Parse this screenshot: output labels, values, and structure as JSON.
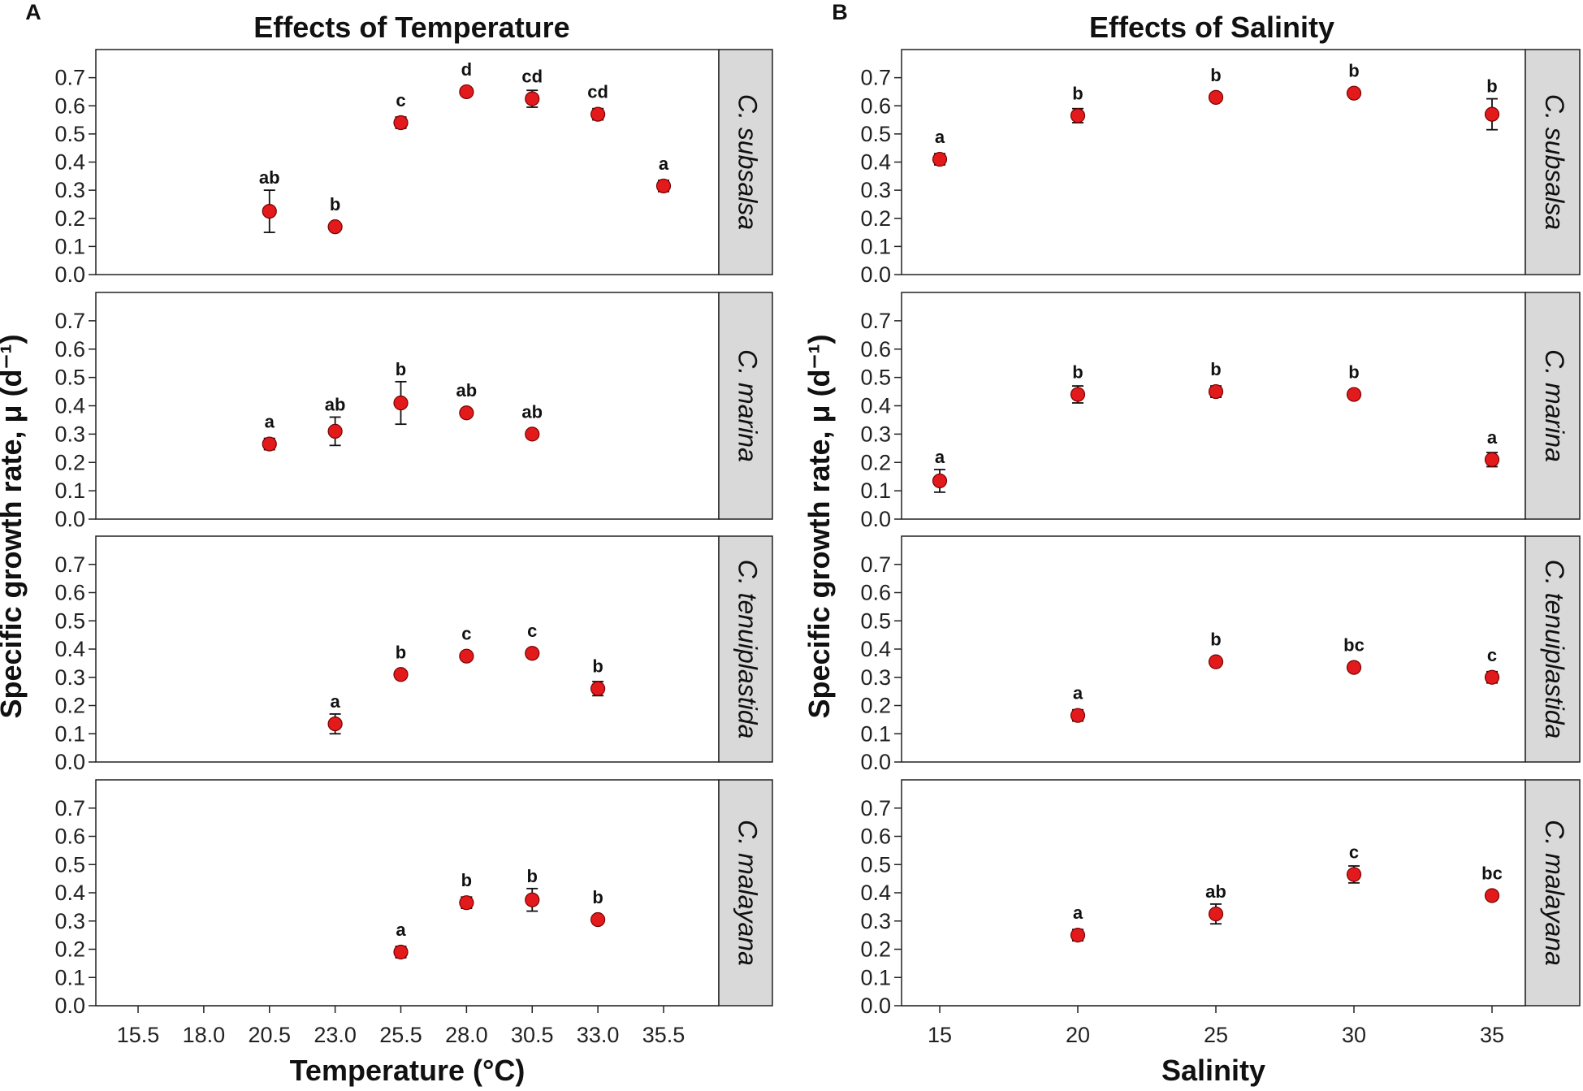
{
  "chart_data": [
    {
      "type": "scatter",
      "panel_label": "A",
      "title": "Effects of Temperature",
      "xlabel": "Temperature (°C)",
      "ylabel": "Specific growth rate, μ (d⁻¹)",
      "x_ticks": [
        "15.5",
        "18.0",
        "20.5",
        "23.0",
        "25.5",
        "28.0",
        "30.5",
        "33.0",
        "35.5"
      ],
      "xlim": [
        14.5,
        38.5
      ],
      "ylim": [
        0,
        0.8
      ],
      "y_ticks": [
        "0.0",
        "0.1",
        "0.2",
        "0.3",
        "0.4",
        "0.5",
        "0.6",
        "0.7"
      ],
      "facets": [
        {
          "name": "C. subsalsa",
          "points": [
            {
              "x": 20.5,
              "y": 0.225,
              "err": 0.075,
              "letter": "ab"
            },
            {
              "x": 23.0,
              "y": 0.17,
              "err": 0.0,
              "letter": "b"
            },
            {
              "x": 25.5,
              "y": 0.54,
              "err": 0.02,
              "letter": "c"
            },
            {
              "x": 28.0,
              "y": 0.65,
              "err": 0.0,
              "letter": "d"
            },
            {
              "x": 30.5,
              "y": 0.625,
              "err": 0.03,
              "letter": "cd"
            },
            {
              "x": 33.0,
              "y": 0.57,
              "err": 0.02,
              "letter": "cd"
            },
            {
              "x": 35.5,
              "y": 0.315,
              "err": 0.02,
              "letter": "a"
            }
          ]
        },
        {
          "name": "C. marina",
          "points": [
            {
              "x": 20.5,
              "y": 0.265,
              "err": 0.02,
              "letter": "a"
            },
            {
              "x": 23.0,
              "y": 0.31,
              "err": 0.05,
              "letter": "ab"
            },
            {
              "x": 25.5,
              "y": 0.41,
              "err": 0.075,
              "letter": "b"
            },
            {
              "x": 28.0,
              "y": 0.375,
              "err": 0.0,
              "letter": "ab"
            },
            {
              "x": 30.5,
              "y": 0.3,
              "err": 0.015,
              "letter": "ab"
            }
          ]
        },
        {
          "name": "C. tenuiplastida",
          "points": [
            {
              "x": 23.0,
              "y": 0.135,
              "err": 0.035,
              "letter": "a"
            },
            {
              "x": 25.5,
              "y": 0.31,
              "err": 0.0,
              "letter": "b"
            },
            {
              "x": 28.0,
              "y": 0.375,
              "err": 0.0,
              "letter": "c"
            },
            {
              "x": 30.5,
              "y": 0.385,
              "err": 0.0,
              "letter": "c"
            },
            {
              "x": 33.0,
              "y": 0.26,
              "err": 0.025,
              "letter": "b"
            }
          ]
        },
        {
          "name": "C. malayana",
          "points": [
            {
              "x": 25.5,
              "y": 0.19,
              "err": 0.02,
              "letter": "a"
            },
            {
              "x": 28.0,
              "y": 0.365,
              "err": 0.02,
              "letter": "b"
            },
            {
              "x": 30.5,
              "y": 0.375,
              "err": 0.04,
              "letter": "b"
            },
            {
              "x": 33.0,
              "y": 0.305,
              "err": 0.0,
              "letter": "b"
            }
          ]
        }
      ]
    },
    {
      "type": "scatter",
      "panel_label": "B",
      "title": "Effects of Salinity",
      "xlabel": "Salinity",
      "ylabel": "Specific growth rate, μ (d⁻¹)",
      "x_ticks": [
        "15",
        "20",
        "25",
        "30",
        "35"
      ],
      "xlim": [
        12.5,
        37.5
      ],
      "ylim": [
        0,
        0.8
      ],
      "y_ticks": [
        "0.0",
        "0.1",
        "0.2",
        "0.3",
        "0.4",
        "0.5",
        "0.6",
        "0.7"
      ],
      "facets": [
        {
          "name": "C. subsalsa",
          "points": [
            {
              "x": 15,
              "y": 0.41,
              "err": 0.02,
              "letter": "a"
            },
            {
              "x": 20,
              "y": 0.565,
              "err": 0.025,
              "letter": "b"
            },
            {
              "x": 25,
              "y": 0.63,
              "err": 0.015,
              "letter": "b"
            },
            {
              "x": 30,
              "y": 0.645,
              "err": 0.0,
              "letter": "b"
            },
            {
              "x": 35,
              "y": 0.57,
              "err": 0.055,
              "letter": "b"
            }
          ]
        },
        {
          "name": "C. marina",
          "points": [
            {
              "x": 15,
              "y": 0.135,
              "err": 0.04,
              "letter": "a"
            },
            {
              "x": 20,
              "y": 0.44,
              "err": 0.03,
              "letter": "b"
            },
            {
              "x": 25,
              "y": 0.45,
              "err": 0.02,
              "letter": "b"
            },
            {
              "x": 30,
              "y": 0.44,
              "err": 0.0,
              "letter": "b"
            },
            {
              "x": 35,
              "y": 0.21,
              "err": 0.025,
              "letter": "a"
            }
          ]
        },
        {
          "name": "C. tenuiplastida",
          "points": [
            {
              "x": 20,
              "y": 0.165,
              "err": 0.02,
              "letter": "a"
            },
            {
              "x": 25,
              "y": 0.355,
              "err": 0.0,
              "letter": "b"
            },
            {
              "x": 30,
              "y": 0.335,
              "err": 0.0,
              "letter": "bc"
            },
            {
              "x": 35,
              "y": 0.3,
              "err": 0.02,
              "letter": "c"
            }
          ]
        },
        {
          "name": "C. malayana",
          "points": [
            {
              "x": 20,
              "y": 0.25,
              "err": 0.02,
              "letter": "a"
            },
            {
              "x": 25,
              "y": 0.325,
              "err": 0.035,
              "letter": "ab"
            },
            {
              "x": 30,
              "y": 0.465,
              "err": 0.03,
              "letter": "c"
            },
            {
              "x": 35,
              "y": 0.39,
              "err": 0.0,
              "letter": "bc"
            }
          ]
        }
      ]
    }
  ],
  "colors": {
    "point": "#e31a1c",
    "strip": "#d9d9d9",
    "axis": "#222222"
  }
}
